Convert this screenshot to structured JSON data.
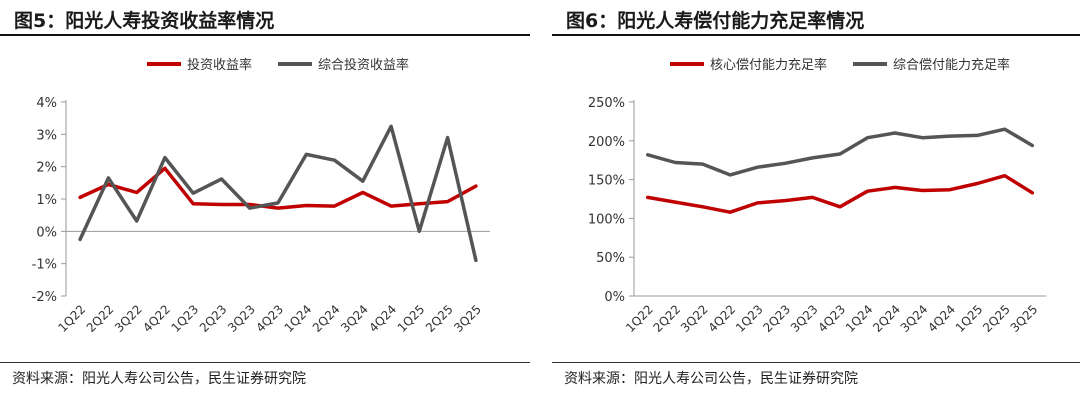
{
  "source_note": "资料来源：阳光人寿公司公告，民生证券研究院",
  "chart_data": [
    {
      "type": "line",
      "title": "图5：阳光人寿投资收益率情况",
      "categories": [
        "1Q22",
        "2Q22",
        "3Q22",
        "4Q22",
        "1Q23",
        "2Q23",
        "3Q23",
        "4Q23",
        "1Q24",
        "2Q24",
        "3Q24",
        "4Q24",
        "1Q25",
        "2Q25",
        "3Q25"
      ],
      "ylim": [
        -2,
        4
      ],
      "yticks": [
        -2,
        -1,
        0,
        1,
        2,
        3,
        4
      ],
      "ytick_labels": [
        "-2%",
        "-1%",
        "0%",
        "1%",
        "2%",
        "3%",
        "4%"
      ],
      "legend_position": "top-center",
      "series": [
        {
          "name": "投资收益率",
          "color": "#C00000",
          "values": [
            1.05,
            1.45,
            1.2,
            1.95,
            0.85,
            0.83,
            0.83,
            0.72,
            0.8,
            0.78,
            1.2,
            0.78,
            0.85,
            0.92,
            1.4
          ]
        },
        {
          "name": "综合投资收益率",
          "color": "#555555",
          "values": [
            -0.25,
            1.65,
            0.32,
            2.28,
            1.18,
            1.62,
            0.72,
            0.88,
            2.38,
            2.2,
            1.55,
            3.25,
            0.0,
            2.9,
            -0.9
          ]
        }
      ]
    },
    {
      "type": "line",
      "title": "图6：阳光人寿偿付能力充足率情况",
      "categories": [
        "1Q22",
        "2Q22",
        "3Q22",
        "4Q22",
        "1Q23",
        "2Q23",
        "3Q23",
        "4Q23",
        "1Q24",
        "2Q24",
        "3Q24",
        "4Q24",
        "1Q25",
        "2Q25",
        "3Q25"
      ],
      "ylim": [
        0,
        250
      ],
      "yticks": [
        0,
        50,
        100,
        150,
        200,
        250
      ],
      "ytick_labels": [
        "0%",
        "50%",
        "100%",
        "150%",
        "200%",
        "250%"
      ],
      "legend_position": "top-center",
      "series": [
        {
          "name": "核心偿付能力充足率",
          "color": "#C00000",
          "values": [
            127,
            121,
            115,
            108,
            120,
            123,
            127,
            115,
            135,
            140,
            136,
            137,
            145,
            155,
            133
          ]
        },
        {
          "name": "综合偿付能力充足率",
          "color": "#555555",
          "values": [
            182,
            172,
            170,
            156,
            166,
            171,
            178,
            183,
            204,
            210,
            204,
            206,
            207,
            215,
            194
          ]
        }
      ]
    }
  ]
}
